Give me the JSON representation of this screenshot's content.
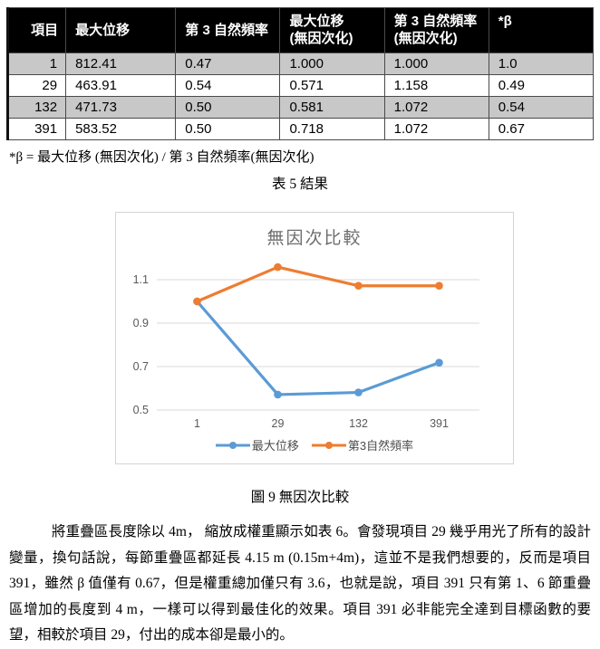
{
  "table": {
    "headers": [
      {
        "line1": "項目"
      },
      {
        "line1": "最大位移"
      },
      {
        "line1": "第 3 自然頻率"
      },
      {
        "line1": "最大位移",
        "line2": "(無因次化)"
      },
      {
        "line1": "第 3 自然頻率",
        "line2": "(無因次化)"
      },
      {
        "line1": "*β"
      }
    ],
    "rows": [
      {
        "cells": [
          "1",
          "812.41",
          "0.47",
          "1.000",
          "1.000",
          "1.0"
        ]
      },
      {
        "cells": [
          "29",
          "463.91",
          "0.54",
          "0.571",
          "1.158",
          "0.49"
        ]
      },
      {
        "cells": [
          "132",
          "471.73",
          "0.50",
          "0.581",
          "1.072",
          "0.54"
        ]
      },
      {
        "cells": [
          "391",
          "583.52",
          "0.50",
          "0.718",
          "1.072",
          "0.67"
        ]
      }
    ]
  },
  "note": "*β =  最大位移  (無因次化) /  第 3 自然頻率(無因次化)",
  "table_caption": "表 5  結果",
  "figure_caption": "圖 9 無因次比較",
  "chart_data": {
    "type": "line",
    "title": "無因次比較",
    "categories": [
      "1",
      "29",
      "132",
      "391"
    ],
    "series": [
      {
        "name": "最大位移",
        "color": "#5B9BD5",
        "values": [
          1.0,
          0.571,
          0.581,
          0.718
        ]
      },
      {
        "name": "第3自然頻率",
        "color": "#ED7D31",
        "values": [
          1.0,
          1.158,
          1.072,
          1.072
        ]
      }
    ],
    "yticks": [
      0.5,
      0.7,
      0.9,
      1.1
    ],
    "ylim": [
      0.5,
      1.2
    ],
    "grid": true,
    "legend_position": "bottom",
    "gridline_color": "#d9d9d9",
    "tick_label_color": "#595959"
  },
  "paragraph": "將重疊區長度除以 4m，  縮放成權重顯示如表 6。會發現項目 29 幾乎用光了所有的設計變量，換句話說，每節重疊區都延長 4.15 m (0.15m+4m)，這並不是我們想要的，反而是項目 391，雖然 β 值僅有 0.67，但是權重總加僅只有 3.6，也就是說，項目 391 只有第 1、6 節重疊區增加的長度到 4 m，一樣可以得到最佳化的效果。項目 391 必非能完全達到目標函數的要望，相較於項目 29，付出的成本卻是最小的。"
}
